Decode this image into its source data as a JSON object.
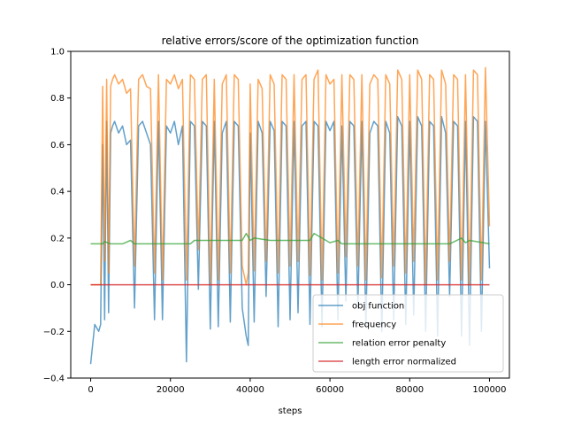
{
  "chart_data": {
    "type": "line",
    "title": "relative errors/score of the optimization function",
    "xlabel": "steps",
    "ylabel": "",
    "xlim": [
      -5000,
      105000
    ],
    "ylim": [
      -0.4,
      1.0
    ],
    "xticks": [
      0,
      20000,
      40000,
      60000,
      80000,
      100000
    ],
    "xtick_labels": [
      "0",
      "20000",
      "40000",
      "60000",
      "80000",
      "100000"
    ],
    "yticks": [
      -0.4,
      -0.2,
      0.0,
      0.2,
      0.4,
      0.6,
      0.8,
      1.0
    ],
    "ytick_labels": [
      "−0.4",
      "−0.2",
      "0.0",
      "0.2",
      "0.4",
      "0.6",
      "0.8",
      "1.0"
    ],
    "grid": false,
    "legend_position": "lower-right",
    "series": [
      {
        "name": "obj function",
        "color": "#1f77b4",
        "alpha": 0.7,
        "x": [
          0,
          1000,
          2000,
          2500,
          3000,
          3500,
          4000,
          4500,
          5000,
          5500,
          6000,
          7000,
          8000,
          9000,
          10000,
          11000,
          12000,
          13000,
          14000,
          15000,
          16000,
          17000,
          18000,
          19000,
          20000,
          21000,
          22000,
          23000,
          24000,
          25000,
          26000,
          27000,
          28000,
          29000,
          30000,
          31000,
          32000,
          33000,
          34000,
          35000,
          36000,
          37000,
          38000,
          39000,
          39500,
          40000,
          41000,
          42000,
          43000,
          44000,
          45000,
          46000,
          47000,
          48000,
          49000,
          50000,
          51000,
          52000,
          53000,
          54000,
          55000,
          56000,
          57000,
          58000,
          59000,
          60000,
          61000,
          62000,
          63000,
          64000,
          65000,
          66000,
          67000,
          68000,
          69000,
          70000,
          71000,
          72000,
          73000,
          74000,
          75000,
          76000,
          77000,
          78000,
          79000,
          80000,
          81000,
          82000,
          83000,
          84000,
          85000,
          86000,
          87000,
          88000,
          89000,
          90000,
          91000,
          92000,
          93000,
          94000,
          95000,
          96000,
          97000,
          98000,
          99000,
          100000
        ],
        "y": [
          -0.34,
          -0.17,
          -0.2,
          -0.17,
          0.6,
          -0.15,
          0.7,
          -0.12,
          0.65,
          0.68,
          0.7,
          0.65,
          0.68,
          0.6,
          0.62,
          -0.1,
          0.68,
          0.7,
          0.65,
          0.6,
          -0.15,
          0.7,
          -0.15,
          0.68,
          0.65,
          0.7,
          0.6,
          0.68,
          -0.33,
          0.7,
          0.68,
          -0.02,
          0.7,
          0.68,
          -0.19,
          0.7,
          -0.18,
          0.65,
          0.7,
          -0.16,
          0.7,
          0.68,
          -0.1,
          -0.22,
          -0.26,
          0.65,
          -0.16,
          0.7,
          0.65,
          -0.05,
          0.7,
          0.66,
          -0.18,
          0.7,
          0.68,
          -0.15,
          0.7,
          -0.12,
          0.68,
          0.7,
          -0.17,
          0.7,
          0.68,
          -0.18,
          0.7,
          0.66,
          0.7,
          -0.15,
          0.68,
          -0.07,
          0.7,
          0.68,
          -0.1,
          0.7,
          -0.18,
          0.65,
          0.7,
          0.68,
          -0.2,
          0.7,
          0.65,
          -0.15,
          0.72,
          0.68,
          -0.17,
          0.7,
          -0.13,
          0.72,
          0.68,
          -0.2,
          0.7,
          0.68,
          -0.22,
          0.72,
          0.65,
          -0.05,
          0.7,
          0.68,
          -0.22,
          0.7,
          -0.26,
          0.72,
          0.7,
          -0.2,
          0.7,
          0.07
        ]
      },
      {
        "name": "frequency",
        "color": "#ff7f0e",
        "alpha": 0.7,
        "x": [
          0,
          1000,
          2000,
          2500,
          3000,
          3500,
          4000,
          4500,
          5000,
          5500,
          6000,
          7000,
          8000,
          9000,
          10000,
          11000,
          12000,
          13000,
          14000,
          15000,
          16000,
          17000,
          18000,
          19000,
          20000,
          21000,
          22000,
          23000,
          24000,
          25000,
          26000,
          27000,
          28000,
          29000,
          30000,
          31000,
          32000,
          33000,
          34000,
          35000,
          36000,
          37000,
          38000,
          39000,
          39500,
          40000,
          41000,
          42000,
          43000,
          44000,
          45000,
          46000,
          47000,
          48000,
          49000,
          50000,
          51000,
          52000,
          53000,
          54000,
          55000,
          56000,
          57000,
          58000,
          59000,
          60000,
          61000,
          62000,
          63000,
          64000,
          65000,
          66000,
          67000,
          68000,
          69000,
          70000,
          71000,
          72000,
          73000,
          74000,
          75000,
          76000,
          77000,
          78000,
          79000,
          80000,
          81000,
          82000,
          83000,
          84000,
          85000,
          86000,
          87000,
          88000,
          89000,
          90000,
          91000,
          92000,
          93000,
          94000,
          95000,
          96000,
          97000,
          98000,
          99000,
          100000
        ],
        "y": [
          0.0,
          0.0,
          0.0,
          0.0,
          0.85,
          0.1,
          0.88,
          0.05,
          0.85,
          0.88,
          0.9,
          0.86,
          0.88,
          0.82,
          0.84,
          0.08,
          0.88,
          0.9,
          0.85,
          0.84,
          0.05,
          0.9,
          0.02,
          0.88,
          0.86,
          0.9,
          0.84,
          0.88,
          0.02,
          0.9,
          0.88,
          0.15,
          0.88,
          0.9,
          0.0,
          0.88,
          0.02,
          0.86,
          0.9,
          0.05,
          0.9,
          0.88,
          0.08,
          0.0,
          0.05,
          0.86,
          0.06,
          0.88,
          0.84,
          0.1,
          0.9,
          0.86,
          0.05,
          0.9,
          0.88,
          0.08,
          0.9,
          0.1,
          0.88,
          0.9,
          0.04,
          0.88,
          0.92,
          0.02,
          0.9,
          0.86,
          0.88,
          0.05,
          0.9,
          0.12,
          0.9,
          0.88,
          0.08,
          0.9,
          0.02,
          0.86,
          0.9,
          0.88,
          0.03,
          0.9,
          0.86,
          0.08,
          0.92,
          0.88,
          0.05,
          0.9,
          0.1,
          0.92,
          0.88,
          0.0,
          0.9,
          0.88,
          0.02,
          0.92,
          0.86,
          0.1,
          0.9,
          0.88,
          0.02,
          0.9,
          0.0,
          0.92,
          0.9,
          0.02,
          0.93,
          0.25
        ]
      },
      {
        "name": "relation error penalty",
        "color": "#2ca02c",
        "alpha": 0.7,
        "x": [
          0,
          3000,
          3500,
          5000,
          8000,
          10000,
          11000,
          20000,
          25000,
          26000,
          27000,
          30000,
          35000,
          38000,
          39000,
          40000,
          41000,
          45000,
          50000,
          55000,
          56000,
          60000,
          62000,
          63000,
          65000,
          70000,
          75000,
          80000,
          85000,
          90000,
          93000,
          94000,
          95000,
          100000
        ],
        "y": [
          0.175,
          0.175,
          0.185,
          0.175,
          0.175,
          0.19,
          0.175,
          0.175,
          0.175,
          0.19,
          0.19,
          0.19,
          0.19,
          0.19,
          0.22,
          0.19,
          0.2,
          0.19,
          0.19,
          0.19,
          0.22,
          0.18,
          0.19,
          0.175,
          0.175,
          0.175,
          0.175,
          0.175,
          0.175,
          0.175,
          0.2,
          0.18,
          0.19,
          0.175
        ]
      },
      {
        "name": "length error normalized",
        "color": "#d62728",
        "alpha": 0.8,
        "x": [
          0,
          100000
        ],
        "y": [
          0.0,
          0.0
        ]
      }
    ]
  }
}
